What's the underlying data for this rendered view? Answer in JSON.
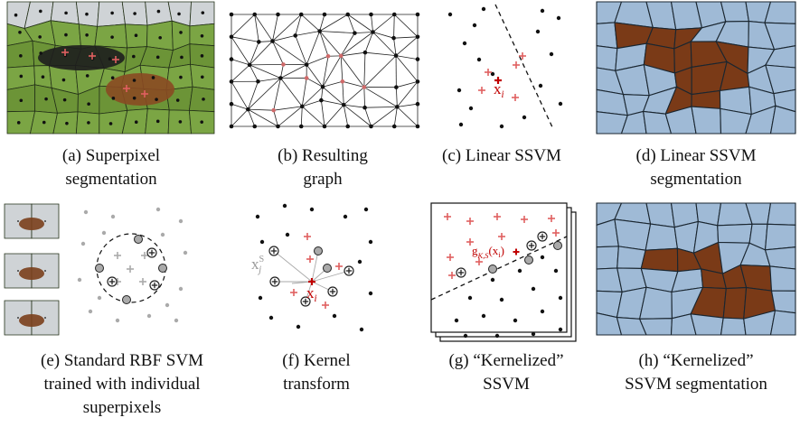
{
  "panels": [
    {
      "caption": [
        "(a) Superpixel",
        "segmentation"
      ]
    },
    {
      "caption": [
        "(b) Resulting",
        "graph"
      ]
    },
    {
      "caption": [
        "(c) Linear SSVM"
      ]
    },
    {
      "caption": [
        "(d) Linear SSVM",
        "segmentation"
      ]
    },
    {
      "caption": [
        "(e) Standard RBF SVM",
        "trained with individual",
        "superpixels"
      ]
    },
    {
      "caption": [
        "(f) Kernel",
        "transform"
      ]
    },
    {
      "caption": [
        "(g) “Kernelized”",
        "SSVM"
      ]
    },
    {
      "caption": [
        "(h) “Kernelized”",
        "SSVM segmentation"
      ]
    }
  ],
  "labels": {
    "c_xi": {
      "base": "x",
      "sub": "i"
    },
    "f_xi": {
      "base": "x",
      "sub": "i"
    },
    "f_xjs": {
      "base": "x",
      "sup": "S",
      "sub": "j"
    },
    "g_fn": {
      "base": "g",
      "sub": "K,S",
      "open": "(x",
      "arg": "i",
      "close": ")"
    }
  }
}
